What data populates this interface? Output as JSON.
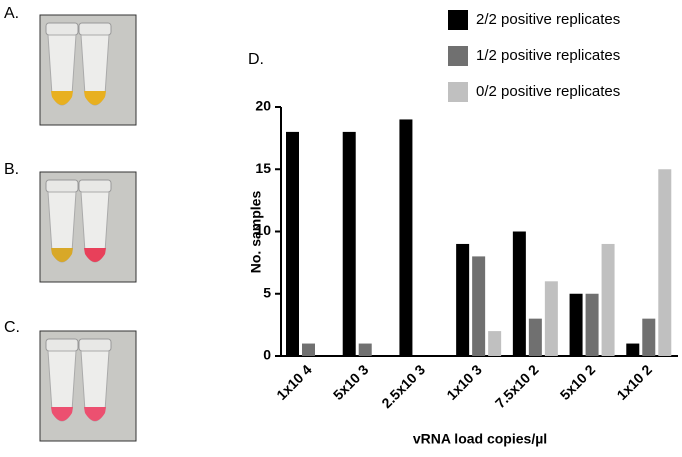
{
  "panels": [
    "A.",
    "B.",
    "C."
  ],
  "chart_data": {
    "type": "bar",
    "panel_label": "D.",
    "categories": [
      "1x10 4",
      "5x10 3",
      "2.5x10 3",
      "1x10 3",
      "7.5x10 2",
      "5x10 2",
      "1x10 2"
    ],
    "series": [
      {
        "name": "2/2 positive replicates",
        "color": "#000000",
        "values": [
          18,
          18,
          19,
          9,
          10,
          5,
          1
        ]
      },
      {
        "name": "1/2 positive replicates",
        "color": "#707070",
        "values": [
          1,
          1,
          0,
          8,
          3,
          5,
          3
        ]
      },
      {
        "name": "0/2 positive replicates",
        "color": "#c0c0c0",
        "values": [
          0,
          0,
          0,
          2,
          6,
          9,
          15
        ]
      }
    ],
    "ylim": [
      0,
      20
    ],
    "yticks": [
      0,
      5,
      10,
      15,
      20
    ],
    "y_label": "No. samples",
    "x_label": "vRNA load copies/µl",
    "legend": "top-right"
  }
}
